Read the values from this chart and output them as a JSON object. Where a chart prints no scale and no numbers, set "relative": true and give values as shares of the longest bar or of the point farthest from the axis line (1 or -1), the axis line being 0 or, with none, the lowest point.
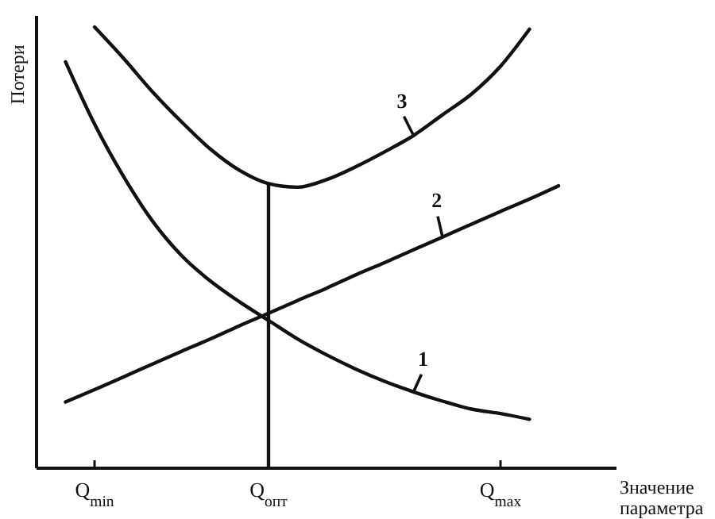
{
  "chart_data": {
    "type": "line",
    "relative": true,
    "xlabel": "Значение параметра",
    "ylabel": "Потери",
    "categories": [
      null,
      null,
      "Q$_{min}$",
      null,
      null,
      null,
      null,
      null,
      "Q$_{опт}$",
      null,
      null,
      null,
      null,
      null,
      null,
      null,
      "Q$_{max}$",
      null,
      null,
      null,
      null
    ],
    "grid": false,
    "line_style": "solid",
    "series": [
      {
        "name": "1",
        "color": "#111111",
        "values": [
          null,
          0.921,
          0.78,
          0.661,
          0.56,
          0.482,
          0.424,
          0.377,
          0.335,
          0.293,
          0.257,
          0.225,
          0.197,
          0.173,
          0.152,
          0.134,
          0.124,
          0.111,
          null,
          null,
          null
        ]
      },
      {
        "name": "2",
        "color": "#111111",
        "values": [
          null,
          0.15,
          0.178,
          0.207,
          0.236,
          0.265,
          0.293,
          0.323,
          0.351,
          0.38,
          0.408,
          0.438,
          0.466,
          0.495,
          0.524,
          0.553,
          0.582,
          0.61,
          0.64,
          null,
          null
        ]
      },
      {
        "name": "3",
        "color": "#111111",
        "values": [
          null,
          null,
          1,
          0.929,
          0.853,
          0.785,
          0.723,
          0.675,
          0.645,
          0.637,
          0.654,
          0.683,
          0.717,
          0.754,
          0.801,
          0.848,
          0.911,
          0.995,
          null,
          null,
          null
        ]
      }
    ],
    "ref_lines": [
      {
        "axis": "x",
        "value": "Q$_{опт}$",
        "color": "#111111"
      }
    ]
  }
}
